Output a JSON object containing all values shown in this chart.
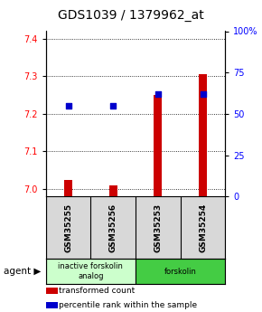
{
  "title": "GDS1039 / 1379962_at",
  "samples": [
    "GSM35255",
    "GSM35256",
    "GSM35253",
    "GSM35254"
  ],
  "transformed_counts": [
    7.025,
    7.01,
    7.25,
    7.305
  ],
  "percentile_ranks": [
    55,
    55,
    62,
    62
  ],
  "ylim_left": [
    6.98,
    7.42
  ],
  "ylim_right": [
    0,
    100
  ],
  "yticks_left": [
    7.0,
    7.1,
    7.2,
    7.3,
    7.4
  ],
  "yticks_right": [
    0,
    25,
    50,
    75,
    100
  ],
  "ytick_labels_right": [
    "0",
    "25",
    "50",
    "75",
    "100%"
  ],
  "bar_color": "#cc0000",
  "dot_color": "#0000cc",
  "agent_groups": [
    {
      "label": "inactive forskolin\nanalog",
      "start": 0,
      "end": 2,
      "color": "#ccffcc"
    },
    {
      "label": "forskolin",
      "start": 2,
      "end": 4,
      "color": "#44cc44"
    }
  ],
  "legend_items": [
    {
      "color": "#cc0000",
      "label": "transformed count"
    },
    {
      "color": "#0000cc",
      "label": "percentile rank within the sample"
    }
  ],
  "bar_width": 0.18,
  "dot_size": 18,
  "title_fontsize": 10,
  "tick_fontsize": 7,
  "sample_fontsize": 6.5,
  "agent_fontsize": 6,
  "legend_fontsize": 6.5
}
